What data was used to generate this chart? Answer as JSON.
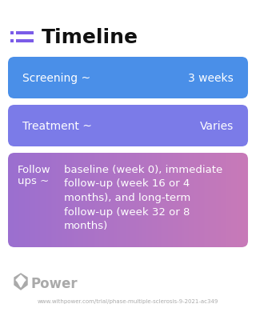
{
  "title": "Timeline",
  "title_fontsize": 18,
  "title_color": "#111111",
  "bg_color": "#ffffff",
  "icon_color": "#7b5ce8",
  "cards": [
    {
      "label_left": "Screening ~",
      "label_right": "3 weeks",
      "bg_color": "#4a8fe8",
      "text_color": "#ffffff",
      "multiline": false,
      "font_size": 10
    },
    {
      "label_left": "Treatment ~",
      "label_right": "Varies",
      "bg_color": "#7b7be8",
      "text_color": "#ffffff",
      "multiline": false,
      "font_size": 10
    },
    {
      "label_left": "Follow\nups ~",
      "label_right": "baseline (week 0), immediate\nfollow-up (week 16 or 4\nmonths), and long-term\nfollow-up (week 32 or 8\nmonths)",
      "bg_color_left": "#9b6fd0",
      "bg_color_right": "#c87ab8",
      "text_color": "#ffffff",
      "multiline": true,
      "font_size": 9.5
    }
  ],
  "footer_logo_text": "Power",
  "footer_url": "www.withpower.com/trial/phase-multiple-sclerosis-9-2021-ac349",
  "footer_color": "#aaaaaa"
}
